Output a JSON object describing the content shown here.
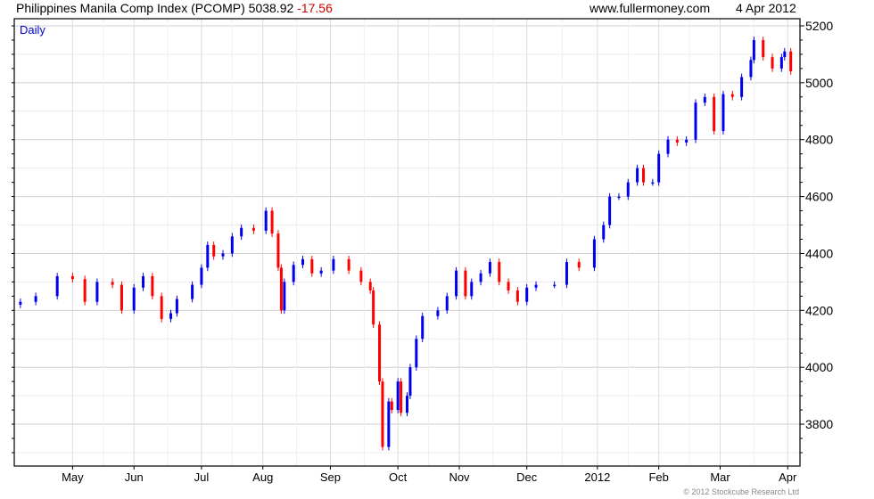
{
  "header": {
    "title": "Philippines Manila Comp Index (PCOMP) 5038.92",
    "change": "-17.56",
    "site": "www.fullermoney.com",
    "date": "4 Apr 2012"
  },
  "footer": "© 2012 Stockcube Research Ltd",
  "colors": {
    "up": "#0000ee",
    "down": "#ff0000",
    "grid": "#dddddd"
  },
  "chart_data": {
    "type": "bar",
    "subtype": "ohlc-daily",
    "label": "Daily",
    "title": "Philippines Manila Comp Index (PCOMP)",
    "ylim": [
      3653,
      5225
    ],
    "xlim": [
      0,
      256
    ],
    "yticks": [
      3800,
      4000,
      4200,
      4400,
      4600,
      4800,
      5000,
      5200
    ],
    "xticks": [
      {
        "label": "May",
        "day": 19
      },
      {
        "label": "Jun",
        "day": 39
      },
      {
        "label": "Jul",
        "day": 61
      },
      {
        "label": "Aug",
        "day": 81
      },
      {
        "label": "Sep",
        "day": 103
      },
      {
        "label": "Oct",
        "day": 125
      },
      {
        "label": "Nov",
        "day": 145
      },
      {
        "label": "Dec",
        "day": 167
      },
      {
        "label": "2012",
        "day": 190
      },
      {
        "label": "Feb",
        "day": 210
      },
      {
        "label": "Mar",
        "day": 230
      },
      {
        "label": "Apr",
        "day": 252
      }
    ],
    "closes": [
      [
        2,
        4230
      ],
      [
        7,
        4250
      ],
      [
        14,
        4320
      ],
      [
        19,
        4310
      ],
      [
        23,
        4230
      ],
      [
        27,
        4300
      ],
      [
        32,
        4290
      ],
      [
        35,
        4200
      ],
      [
        39,
        4280
      ],
      [
        42,
        4320
      ],
      [
        45,
        4250
      ],
      [
        48,
        4170
      ],
      [
        51,
        4190
      ],
      [
        53,
        4240
      ],
      [
        58,
        4290
      ],
      [
        61,
        4350
      ],
      [
        63,
        4430
      ],
      [
        65,
        4390
      ],
      [
        68,
        4400
      ],
      [
        71,
        4460
      ],
      [
        74,
        4490
      ],
      [
        78,
        4480
      ],
      [
        82,
        4550
      ],
      [
        84,
        4470
      ],
      [
        86,
        4350
      ],
      [
        87,
        4200
      ],
      [
        88,
        4300
      ],
      [
        91,
        4360
      ],
      [
        94,
        4380
      ],
      [
        97,
        4330
      ],
      [
        100,
        4340
      ],
      [
        104,
        4380
      ],
      [
        109,
        4340
      ],
      [
        113,
        4300
      ],
      [
        116,
        4270
      ],
      [
        117,
        4150
      ],
      [
        119,
        3950
      ],
      [
        120,
        3720
      ],
      [
        122,
        3880
      ],
      [
        123,
        3850
      ],
      [
        125,
        3950
      ],
      [
        126,
        3840
      ],
      [
        128,
        3900
      ],
      [
        129,
        4000
      ],
      [
        131,
        4100
      ],
      [
        133,
        4180
      ],
      [
        138,
        4200
      ],
      [
        141,
        4250
      ],
      [
        144,
        4340
      ],
      [
        147,
        4250
      ],
      [
        149,
        4300
      ],
      [
        152,
        4330
      ],
      [
        155,
        4370
      ],
      [
        158,
        4300
      ],
      [
        161,
        4270
      ],
      [
        164,
        4230
      ],
      [
        167,
        4280
      ],
      [
        170,
        4290
      ],
      [
        176,
        4290
      ],
      [
        180,
        4370
      ],
      [
        184,
        4350
      ],
      [
        189,
        4450
      ],
      [
        192,
        4500
      ],
      [
        194,
        4600
      ],
      [
        197,
        4600
      ],
      [
        200,
        4650
      ],
      [
        203,
        4700
      ],
      [
        205,
        4650
      ],
      [
        208,
        4650
      ],
      [
        210,
        4750
      ],
      [
        213,
        4800
      ],
      [
        216,
        4790
      ],
      [
        219,
        4800
      ],
      [
        222,
        4930
      ],
      [
        225,
        4950
      ],
      [
        228,
        4830
      ],
      [
        231,
        4960
      ],
      [
        234,
        4950
      ],
      [
        237,
        5020
      ],
      [
        240,
        5080
      ],
      [
        241,
        5150
      ],
      [
        244,
        5090
      ],
      [
        247,
        5050
      ],
      [
        250,
        5090
      ],
      [
        251,
        5110
      ],
      [
        253,
        5040
      ]
    ]
  }
}
